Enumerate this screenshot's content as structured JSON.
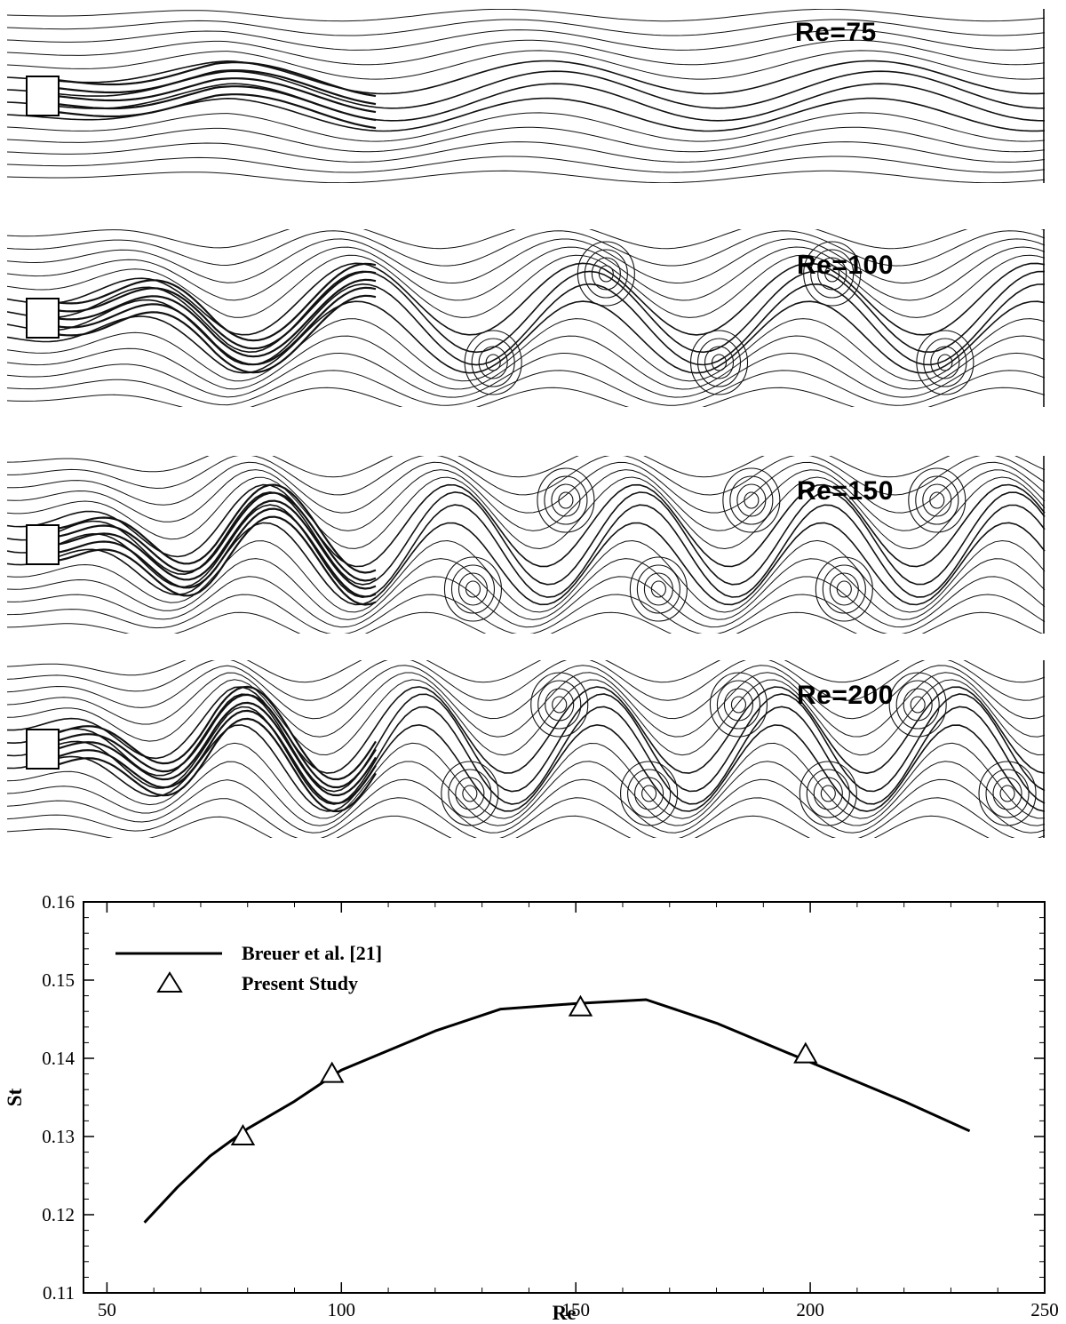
{
  "panels": [
    {
      "label": "Re=75"
    },
    {
      "label": "Re=100"
    },
    {
      "label": "Re=150"
    },
    {
      "label": "Re=200"
    }
  ],
  "chart_data": {
    "type": "line",
    "xlabel": "Re",
    "ylabel": "St",
    "xlim": [
      45,
      250
    ],
    "ylim": [
      0.11,
      0.16
    ],
    "xticks": [
      50,
      100,
      150,
      200,
      250
    ],
    "yticks": [
      0.11,
      0.12,
      0.13,
      0.14,
      0.15,
      0.16
    ],
    "ytick_labels": [
      "0.11",
      "0.12",
      "0.13",
      "0.14",
      "0.15",
      "0.16"
    ],
    "legend_position": "top-left",
    "series": [
      {
        "name": "Breuer et al. [21]",
        "style": "line",
        "x": [
          58,
          65,
          72,
          80,
          90,
          100,
          110,
          120,
          134,
          150,
          165,
          180,
          200,
          220,
          234
        ],
        "y": [
          0.119,
          0.1235,
          0.1275,
          0.131,
          0.1345,
          0.1385,
          0.141,
          0.1435,
          0.1463,
          0.147,
          0.1475,
          0.1445,
          0.1395,
          0.1345,
          0.1307
        ]
      },
      {
        "name": "Present Study",
        "style": "triangle-marker",
        "x": [
          79,
          98,
          151,
          199
        ],
        "y": [
          0.13,
          0.138,
          0.1465,
          0.1405
        ]
      }
    ]
  }
}
